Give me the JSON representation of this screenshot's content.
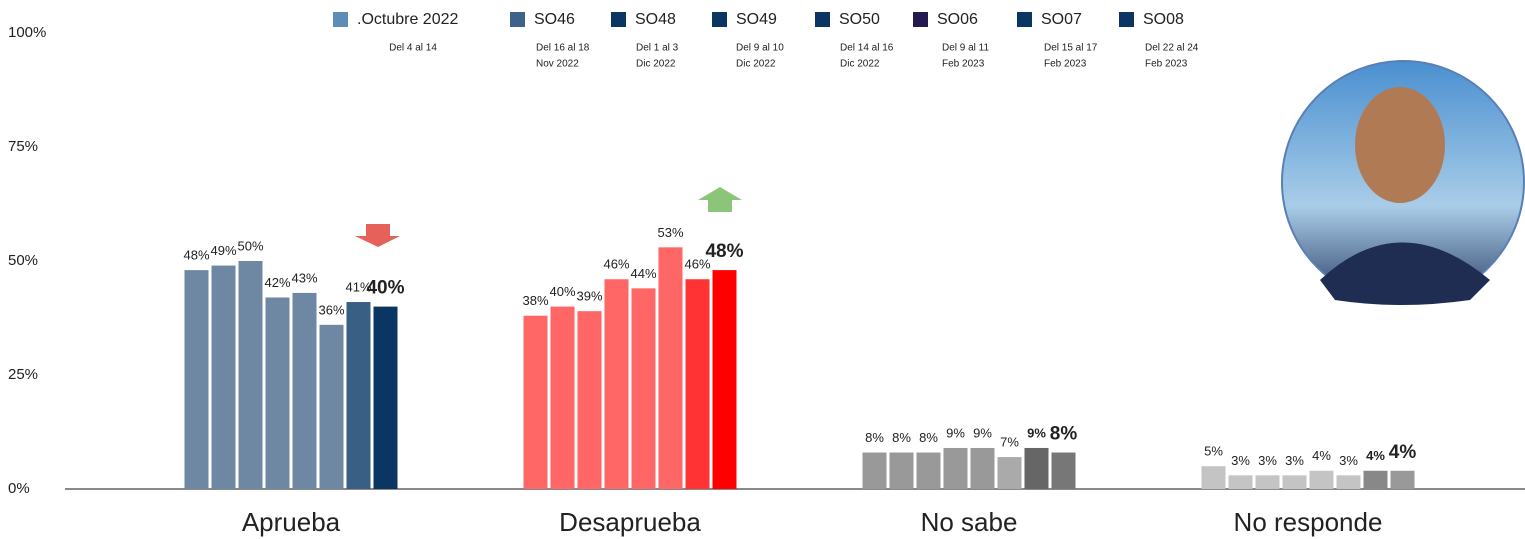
{
  "chart_data": {
    "type": "bar",
    "categories": [
      "Aprueba",
      "Desaprueba",
      "No sabe",
      "No responde"
    ],
    "ylim": [
      0,
      100
    ],
    "yticks": [
      {
        "value": 0,
        "label": "0%"
      },
      {
        "value": 25,
        "label": "25%"
      },
      {
        "value": 50,
        "label": "50%"
      },
      {
        "value": 75,
        "label": "75%"
      },
      {
        "value": 100,
        "label": "100%"
      }
    ],
    "series": [
      {
        "name": ".Octubre 2022",
        "dates": [
          "Del 4 al 14"
        ],
        "color": "#5b8db8",
        "colors": [
          "#6e88a3",
          "#ff6666",
          "#999999",
          "#c4c4c4"
        ],
        "values": [
          48,
          38,
          8,
          5
        ],
        "value_labels": [
          "48%",
          "38%",
          "8%",
          "5%"
        ]
      },
      {
        "name": "SO46",
        "dates": [
          "Del 16 al 18",
          "Nov 2022"
        ],
        "color": "#3e6289",
        "colors": [
          "#6e88a3",
          "#ff6666",
          "#999999",
          "#c4c4c4"
        ],
        "values": [
          49,
          40,
          8,
          3
        ],
        "value_labels": [
          "49%",
          "40%",
          "8%",
          "3%"
        ]
      },
      {
        "name": "SO48",
        "dates": [
          "Del 1 al 3",
          "Dic 2022"
        ],
        "color": "#0b3563",
        "colors": [
          "#6e88a3",
          "#ff6666",
          "#999999",
          "#c4c4c4"
        ],
        "values": [
          50,
          39,
          8,
          3
        ],
        "value_labels": [
          "50%",
          "39%",
          "8%",
          "3%"
        ]
      },
      {
        "name": "SO49",
        "dates": [
          "Del 9 al 10",
          "Dic 2022"
        ],
        "color": "#0b3563",
        "colors": [
          "#6e88a3",
          "#ff6666",
          "#999999",
          "#c4c4c4"
        ],
        "values": [
          42,
          46,
          9,
          3
        ],
        "value_labels": [
          "42%",
          "46%",
          "9%",
          "3%"
        ]
      },
      {
        "name": "SO50",
        "dates": [
          "Del 14 al 16",
          "Dic 2022"
        ],
        "color": "#0b3563",
        "colors": [
          "#6e88a3",
          "#ff6666",
          "#999999",
          "#c4c4c4"
        ],
        "values": [
          43,
          44,
          9,
          4
        ],
        "value_labels": [
          "43%",
          "44%",
          "9%",
          "4%"
        ]
      },
      {
        "name": "SO06",
        "dates": [
          "Del 9 al 11",
          "Feb 2023"
        ],
        "color": "#251a4f",
        "colors": [
          "#6e88a3",
          "#ff6666",
          "#aaaaaa",
          "#c4c4c4"
        ],
        "values": [
          36,
          53,
          7,
          3
        ],
        "value_labels": [
          "36%",
          "53%",
          "7%",
          "3%"
        ]
      },
      {
        "name": "SO07",
        "dates": [
          "Del 15 al 17",
          "Feb 2023"
        ],
        "color": "#0b3563",
        "colors": [
          "#3a5f85",
          "#ff3333",
          "#666666",
          "#888888"
        ],
        "values": [
          41,
          46,
          9,
          4
        ],
        "value_labels": [
          "41%",
          "46%",
          "9%",
          "4%"
        ]
      },
      {
        "name": "SO08",
        "dates": [
          "Del 22 al 24",
          "Feb 2023"
        ],
        "color": "#0b3563",
        "colors": [
          "#0b3563",
          "#ff0000",
          "#777777",
          "#999999"
        ],
        "values": [
          40,
          48,
          8,
          4
        ],
        "value_labels": [
          "40%",
          "48%",
          "8%",
          "4%"
        ]
      }
    ]
  }
}
